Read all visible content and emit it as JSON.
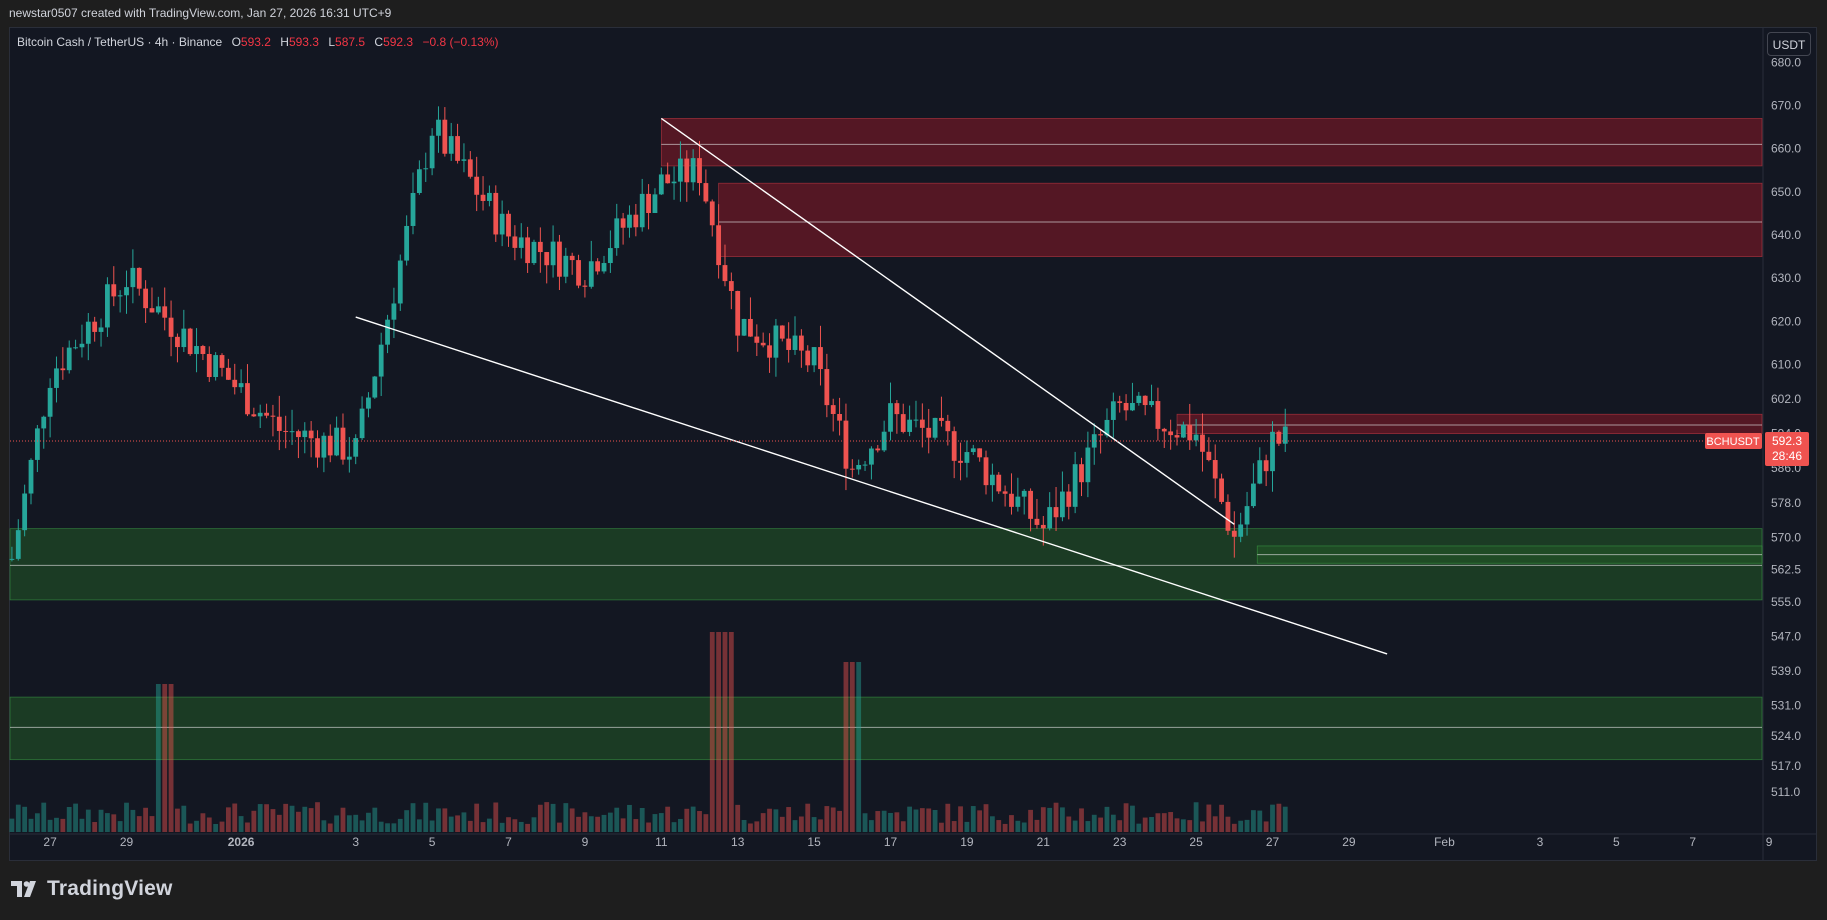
{
  "header": {
    "text": "newstar0507 created with TradingView.com, Jan 27, 2026 16:31 UTC+9"
  },
  "legend": {
    "symbol": "Bitcoin Cash / TetherUS · 4h · Binance",
    "open_label": "O",
    "open": "593.2",
    "high_label": "H",
    "high": "593.3",
    "low_label": "L",
    "low": "587.5",
    "close_label": "C",
    "close": "592.3",
    "change": "−0.8 (−0.13%)"
  },
  "currency_button": "USDT",
  "price_tag": {
    "symbol": "BCHUSDT",
    "price": "592.3",
    "countdown": "28:46"
  },
  "footer": {
    "brand": "TradingView"
  },
  "colors": {
    "up": "#26a69a",
    "down": "#ef5350",
    "bg": "#131722",
    "supply_zone": "#5b1a22",
    "demand_zone": "#1e4620",
    "trendline": "#ffffff"
  },
  "chart_data": {
    "type": "candlestick",
    "symbol": "BCHUSDT",
    "timeframe": "4h",
    "ylim": [
      505,
      684
    ],
    "y_ticks": [
      "680.0",
      "670.0",
      "660.0",
      "650.0",
      "640.0",
      "630.0",
      "620.0",
      "610.0",
      "602.0",
      "594.0",
      "586.0",
      "578.0",
      "570.0",
      "562.5",
      "555.0",
      "547.0",
      "539.0",
      "531.0",
      "524.0",
      "517.0",
      "511.0"
    ],
    "x_ticks": [
      "27",
      "29",
      "2026",
      "3",
      "5",
      "7",
      "9",
      "11",
      "13",
      "15",
      "17",
      "19",
      "21",
      "23",
      "25",
      "27",
      "29",
      "Feb",
      "3",
      "5",
      "7",
      "9"
    ],
    "key_points": [
      {
        "date": "Dec 26",
        "price": 565
      },
      {
        "date": "Dec 27",
        "price": 608
      },
      {
        "date": "Dec 29",
        "price": 630
      },
      {
        "date": "Jan 1",
        "price": 595
      },
      {
        "date": "Jan 3",
        "price": 590
      },
      {
        "date": "Jan 5",
        "price": 665
      },
      {
        "date": "Jan 7",
        "price": 640
      },
      {
        "date": "Jan 9",
        "price": 632
      },
      {
        "date": "Jan 11",
        "price": 652
      },
      {
        "date": "Jan 12",
        "price": 655
      },
      {
        "date": "Jan 13",
        "price": 620
      },
      {
        "date": "Jan 15",
        "price": 610
      },
      {
        "date": "Jan 16",
        "price": 586
      },
      {
        "date": "Jan 17",
        "price": 598
      },
      {
        "date": "Jan 19",
        "price": 590
      },
      {
        "date": "Jan 21",
        "price": 572
      },
      {
        "date": "Jan 23",
        "price": 600
      },
      {
        "date": "Jan 25",
        "price": 594
      },
      {
        "date": "Jan 26",
        "price": 570
      },
      {
        "date": "Jan 27",
        "price": 592.3
      }
    ],
    "zones": [
      {
        "kind": "supply",
        "from": 656,
        "to": 667,
        "midline": 661
      },
      {
        "kind": "supply",
        "from": 635,
        "to": 652,
        "midline": 643
      },
      {
        "kind": "supply",
        "from": 594,
        "to": 598.5,
        "midline": 596
      },
      {
        "kind": "demand",
        "from": 555.5,
        "to": 572,
        "midline": 563.5
      },
      {
        "kind": "demand",
        "from": 564,
        "to": 568,
        "midline": 566
      },
      {
        "kind": "demand",
        "from": 518.5,
        "to": 533,
        "midline": 526
      }
    ],
    "trendlines": [
      {
        "from": {
          "date": "Jan 3",
          "price": 621
        },
        "to": {
          "date": "Jan 30",
          "price": 543
        }
      },
      {
        "from": {
          "date": "Jan 11",
          "price": 667
        },
        "to": {
          "date": "Jan 26",
          "price": 573
        }
      }
    ],
    "last_price": 592.3,
    "volume": "histogram at bottom, tall bars near Jan 12 and Jan 16"
  }
}
